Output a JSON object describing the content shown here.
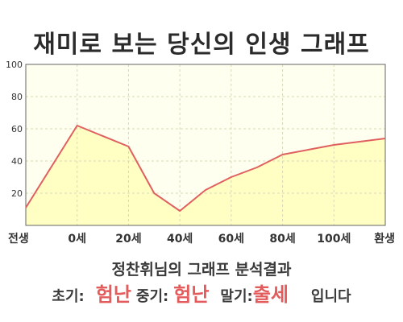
{
  "title": "재미로 보는 당신의 인생 그래프",
  "subtitle": "정찬휘님의 그래프 분석결과",
  "summary": {
    "early_label": "초기:",
    "early_value": "험난",
    "mid_label": "중기:",
    "mid_value": "험난",
    "late_label": "말기:",
    "late_value": "출세",
    "ending": "입니다"
  },
  "colors": {
    "line": "#e06060",
    "fill": "#ffffc4",
    "plot_bg": "#fffff0",
    "highlight": "#e35b5b"
  },
  "chart_data": {
    "type": "area",
    "title": "재미로 보는 당신의 인생 그래프",
    "x_tick_labels": [
      "전생",
      "0세",
      "20세",
      "40세",
      "60세",
      "80세",
      "100세",
      "환생"
    ],
    "x_tick_positions": [
      -20,
      0,
      20,
      40,
      60,
      80,
      100,
      120
    ],
    "xlim": [
      -20,
      120
    ],
    "ylim": [
      0,
      100
    ],
    "y_ticks": [
      20,
      40,
      60,
      80,
      100
    ],
    "grid": true,
    "series": [
      {
        "x": [
          -20,
          0,
          20,
          30,
          40,
          50,
          60,
          70,
          80,
          90,
          100,
          110,
          120
        ],
        "y": [
          11,
          62,
          49,
          20,
          9,
          22,
          30,
          36,
          44,
          47,
          50,
          52,
          54
        ]
      }
    ]
  }
}
